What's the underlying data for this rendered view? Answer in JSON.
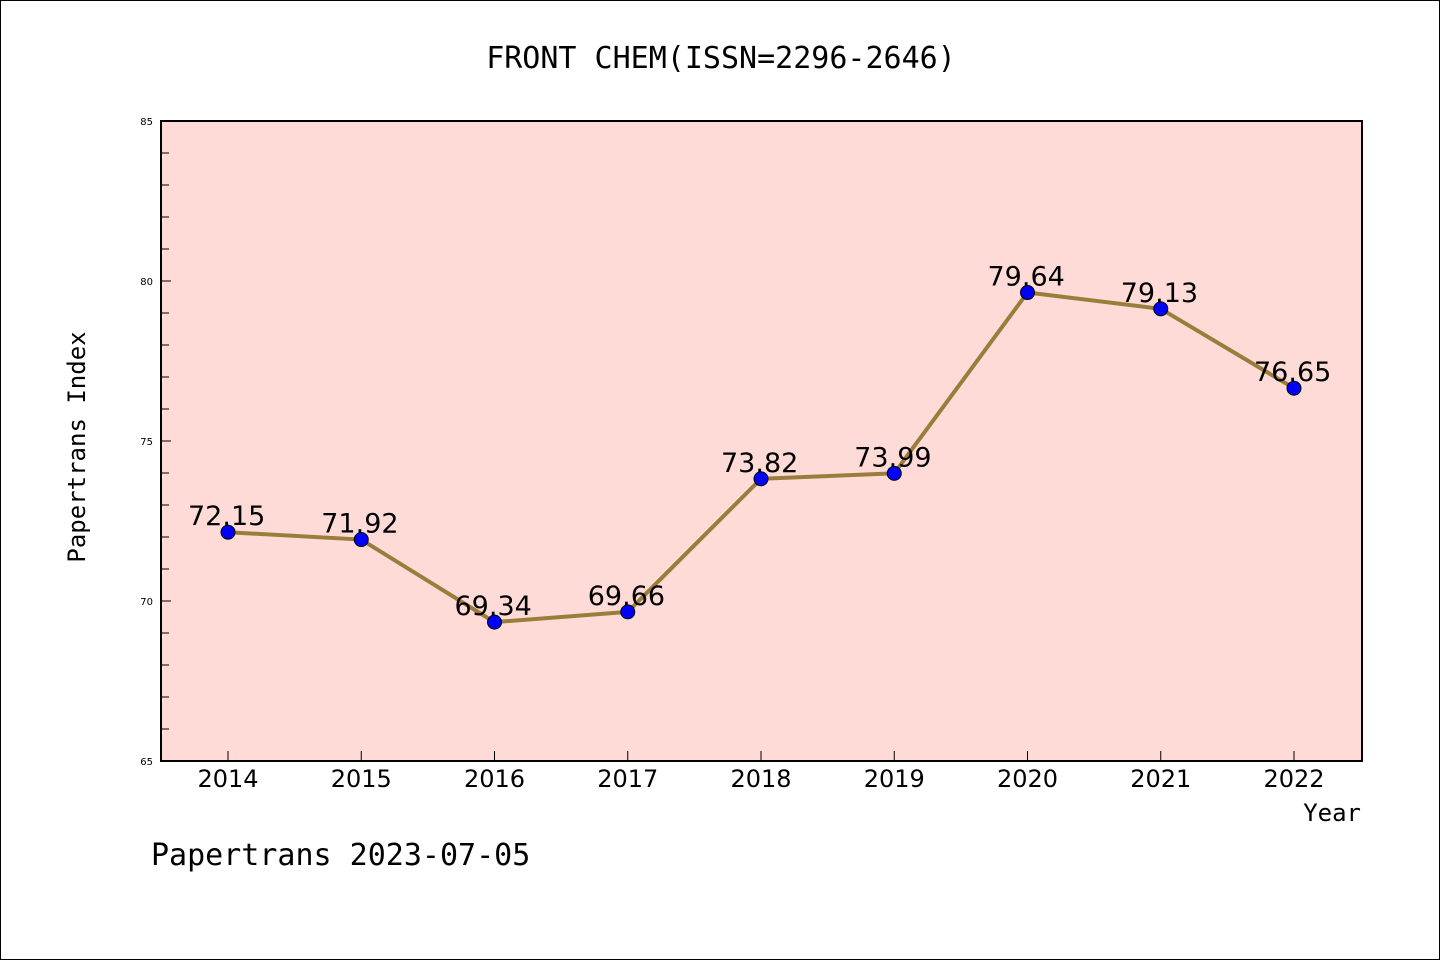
{
  "chart_data": {
    "type": "line",
    "title": "FRONT CHEM(ISSN=2296-2646)",
    "xlabel": "Year",
    "ylabel": "Papertrans Index",
    "categories": [
      "2014",
      "2015",
      "2016",
      "2017",
      "2018",
      "2019",
      "2020",
      "2021",
      "2022"
    ],
    "values": [
      72.15,
      71.92,
      69.34,
      69.66,
      73.82,
      73.99,
      79.64,
      79.13,
      76.65
    ],
    "value_labels": [
      "72.15",
      "71.92",
      "69.34",
      "69.66",
      "73.82",
      "73.99",
      "79.64",
      "79.13",
      "76.65"
    ],
    "ylim": [
      65,
      85
    ],
    "yticks": [
      "65",
      "70",
      "75",
      "80",
      "85"
    ],
    "grid": false,
    "line_color": "#9a7d3a",
    "marker_color": "#0000ff",
    "plot_background": "#ffdbd8"
  },
  "footer": "Papertrans 2023-07-05"
}
